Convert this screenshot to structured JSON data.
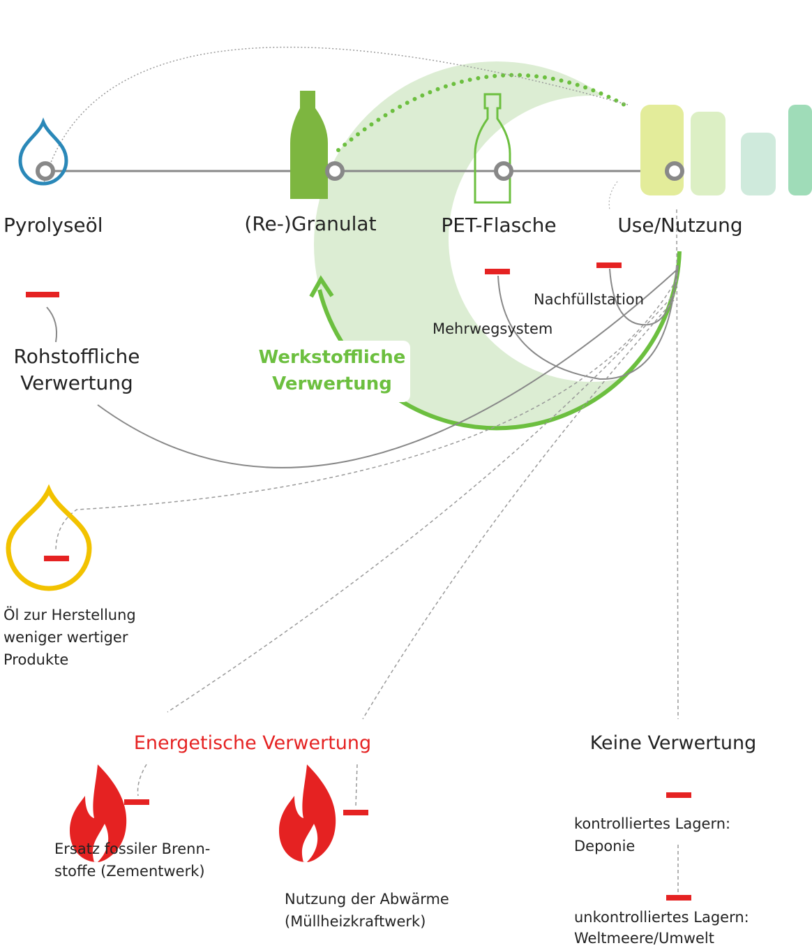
{
  "nodes": [
    {
      "label": "Pyrolyseöl"
    },
    {
      "label": "(Re-)Granulat"
    },
    {
      "label": "PET-Flasche"
    },
    {
      "label": "Use/Nutzung"
    }
  ],
  "loops": {
    "rohstoffliche": {
      "lines": [
        "Rohstoffliche",
        "Verwertung"
      ]
    },
    "werkstoffliche": {
      "lines": [
        "Werkstoffliche",
        "Verwertung"
      ]
    },
    "mehrwegsystem": {
      "label": "Mehrwegsystem"
    },
    "nachfuellstation": {
      "label": "Nachfüllstation"
    }
  },
  "oil": {
    "lines": [
      "Öl zur Herstellung",
      "weniger wertiger",
      "Produkte"
    ]
  },
  "energetic": {
    "title": "Energetische Verwertung",
    "items": [
      {
        "lines": [
          "Ersatz fossiler Brenn-",
          "stoffe (Zementwerk)"
        ]
      },
      {
        "lines": [
          "Nutzung der Abwärme",
          "(Müllheizkraftwerk)"
        ]
      }
    ]
  },
  "none": {
    "title": "Keine Verwertung",
    "items": [
      {
        "lines": [
          "kontrolliertes Lagern:",
          "Deponie"
        ]
      },
      {
        "lines": [
          "unkontrolliertes Lagern:",
          "Weltmeere/Umwelt"
        ]
      }
    ]
  }
}
